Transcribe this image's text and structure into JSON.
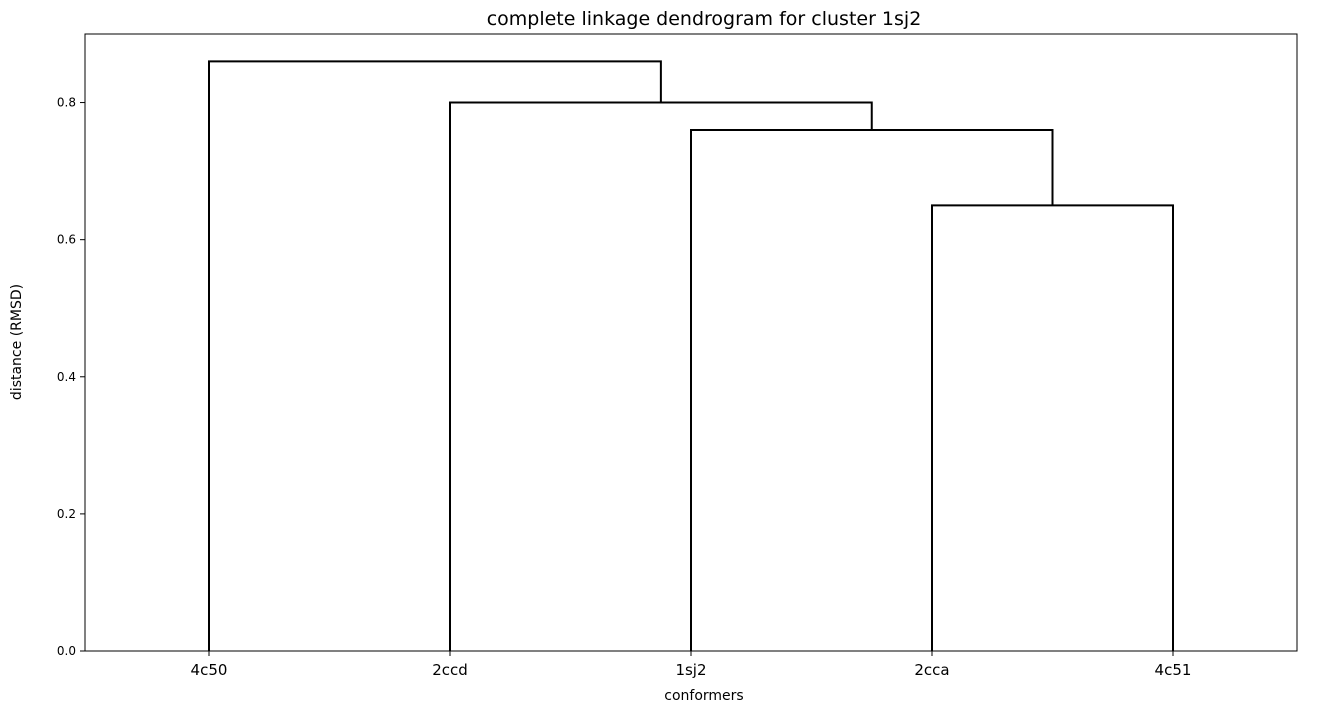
{
  "chart_data": {
    "type": "dendrogram",
    "title": "complete linkage dendrogram for cluster 1sj2",
    "xlabel": "conformers",
    "ylabel": "distance (RMSD)",
    "ylim": [
      0,
      0.9
    ],
    "yticks": [
      "0.0",
      "0.2",
      "0.4",
      "0.6",
      "0.8"
    ],
    "ytick_values": [
      0,
      0.2,
      0.4,
      0.6,
      0.8
    ],
    "leaves": [
      "4c50",
      "2ccd",
      "1sj2",
      "2cca",
      "4c51"
    ],
    "merges": [
      {
        "left": "2cca",
        "right": "4c51",
        "distance": 0.65
      },
      {
        "left": "1sj2",
        "right": "2cca+4c51",
        "distance": 0.76
      },
      {
        "left": "2ccd",
        "right": "1sj2+2cca+4c51",
        "distance": 0.8
      },
      {
        "left": "4c50",
        "right": "2ccd+1sj2+2cca+4c51",
        "distance": 0.86
      }
    ],
    "line_color": "#000000"
  }
}
